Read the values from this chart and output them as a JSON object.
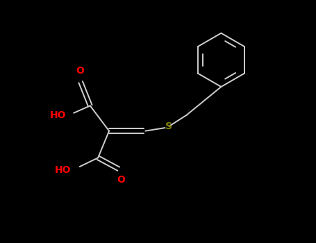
{
  "background_color": "#000000",
  "bond_color": "#d0d0d0",
  "oxygen_color": "#ff0000",
  "sulfur_color": "#808000",
  "fig_width": 4.55,
  "fig_height": 3.5,
  "dpi": 100,
  "bond_lw": 1.4,
  "font_size_atom": 10,
  "font_size_small": 9,
  "xlim": [
    0,
    10
  ],
  "ylim": [
    0,
    7.7
  ]
}
